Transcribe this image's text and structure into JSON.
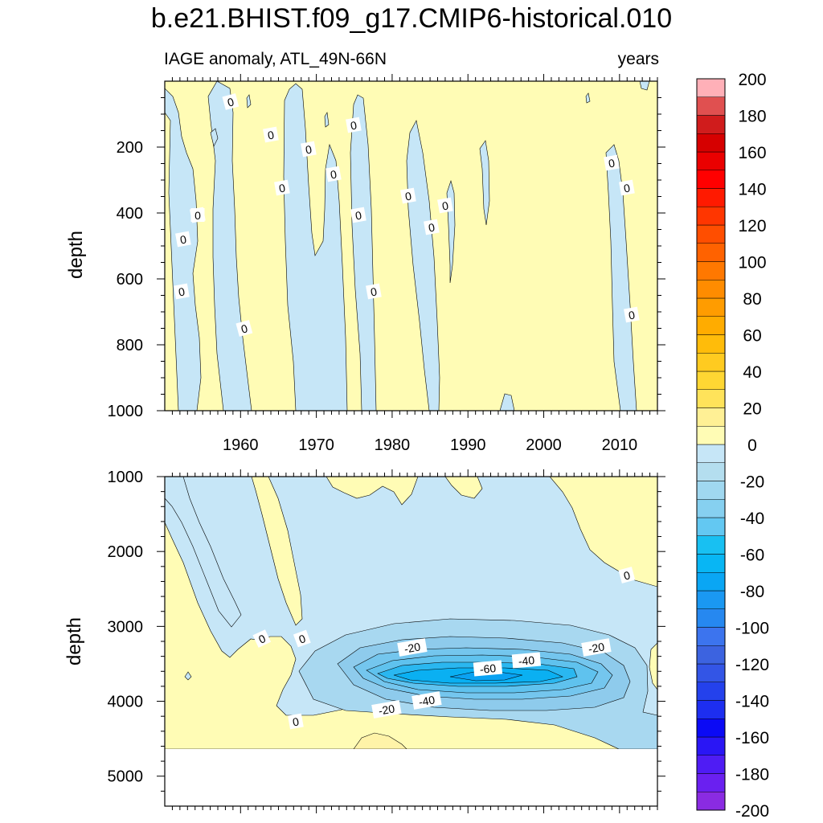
{
  "chart_data": {
    "type": "contour",
    "title": "b.e21.BHIST.f09_g17.CMIP6-historical.010",
    "subtitle_left": "IAGE anomaly, ATL_49N-66N",
    "subtitle_right": "years",
    "colorbar": {
      "levels": [
        -200,
        -190,
        -180,
        -170,
        -160,
        -150,
        -140,
        -130,
        -120,
        -110,
        -100,
        -90,
        -80,
        -70,
        -60,
        -50,
        -40,
        -30,
        -20,
        -10,
        0,
        10,
        20,
        30,
        40,
        50,
        60,
        70,
        80,
        90,
        100,
        110,
        120,
        130,
        140,
        150,
        160,
        170,
        180,
        190,
        200
      ],
      "tick_labels": [
        "-200",
        "-180",
        "-160",
        "-140",
        "-120",
        "-100",
        "-80",
        "-60",
        "-40",
        "-20",
        "0",
        "20",
        "40",
        "60",
        "80",
        "100",
        "120",
        "140",
        "160",
        "180",
        "200"
      ]
    },
    "panels": [
      {
        "name": "upper",
        "ylabel": "depth",
        "ylim": [
          0,
          1000
        ],
        "y_reversed": true,
        "yticks": [
          "200",
          "400",
          "600",
          "800",
          "1000"
        ],
        "xlim": [
          1950,
          2015
        ],
        "xticks": [
          "1960",
          "1970",
          "1980",
          "1990",
          "2000",
          "2010"
        ],
        "contour_labels": [
          "0",
          "0",
          "0",
          "0",
          "0",
          "0",
          "0",
          "0",
          "0",
          "0",
          "0",
          "0",
          "0",
          "0",
          "0",
          "0",
          "0",
          "0",
          "0"
        ],
        "negative_bands_years": [
          [
            1951.5,
            1954.8
          ],
          [
            1957.5,
            1962.3
          ],
          [
            1966.0,
            1971.5
          ],
          [
            1973.5,
            1978.0
          ],
          [
            1982.3,
            1986.0
          ],
          [
            2008.0,
            2012.0
          ]
        ]
      },
      {
        "name": "lower",
        "ylabel": "depth",
        "ylim": [
          1000,
          5400
        ],
        "y_reversed": true,
        "yticks": [
          "1000",
          "2000",
          "3000",
          "4000",
          "5000"
        ],
        "xlim": [
          1950,
          2015
        ],
        "no_data_below": 4620,
        "contour_labels": [
          "0",
          "0",
          "0",
          "0",
          "-20",
          "-20",
          "-20",
          "-40",
          "-40",
          "-60"
        ],
        "minimum": {
          "year": 1991,
          "depth": 3650,
          "value": -75
        }
      }
    ]
  }
}
